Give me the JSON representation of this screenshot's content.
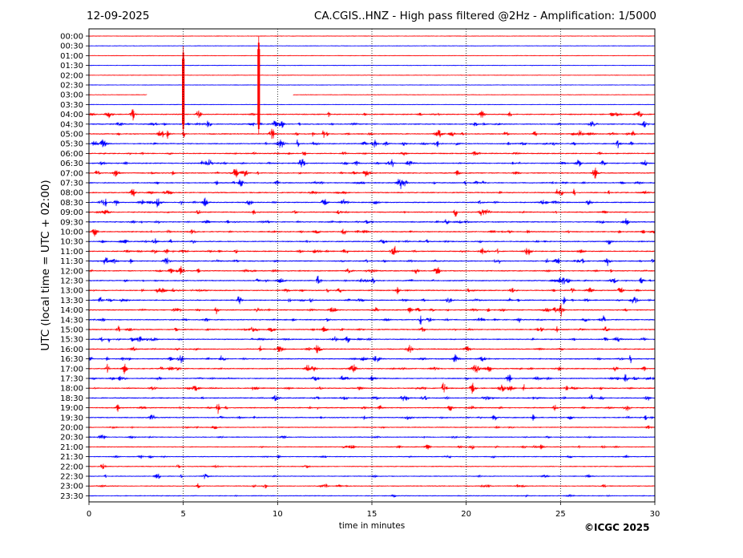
{
  "header": {
    "date": "12-09-2025",
    "title": "CA.CGIS..HNZ - High pass filtered @2Hz - Amplification: 1/5000"
  },
  "footer": {
    "copyright": "©ICGC 2025"
  },
  "chart_data": {
    "type": "line",
    "title": "CA.CGIS..HNZ - High pass filtered @2Hz - Amplification: 1/5000",
    "xlabel": "time in minutes",
    "ylabel": "UTC (local time = UTC + 02:00)",
    "xlim": [
      0,
      30
    ],
    "x_ticks": [
      0,
      5,
      10,
      15,
      20,
      25,
      30
    ],
    "vertical_gridlines_at": [
      5,
      10,
      15,
      20,
      25
    ],
    "row_labels": [
      "00:00",
      "00:30",
      "01:00",
      "01:30",
      "02:00",
      "02:30",
      "03:00",
      "03:30",
      "04:00",
      "04:30",
      "05:00",
      "05:30",
      "06:00",
      "06:30",
      "07:00",
      "07:30",
      "08:00",
      "08:30",
      "09:00",
      "09:30",
      "10:00",
      "10:30",
      "11:00",
      "11:30",
      "12:00",
      "12:30",
      "13:00",
      "13:30",
      "14:00",
      "14:30",
      "15:00",
      "15:30",
      "16:00",
      "16:30",
      "17:00",
      "17:30",
      "18:00",
      "18:30",
      "19:00",
      "19:30",
      "20:00",
      "20:30",
      "21:00",
      "21:30",
      "22:00",
      "22:30",
      "23:00",
      "23:30"
    ],
    "series_colors": [
      "#ff0000",
      "#0000ff"
    ],
    "gap": {
      "row": "03:00",
      "from_minute": 3.1,
      "to_minute": 10.8
    },
    "spikes": [
      {
        "minute": 5.0,
        "row_from": "01:00",
        "row_to": "05:00"
      },
      {
        "minute": 9.0,
        "row_from": "00:30",
        "row_to": "05:00"
      }
    ]
  }
}
